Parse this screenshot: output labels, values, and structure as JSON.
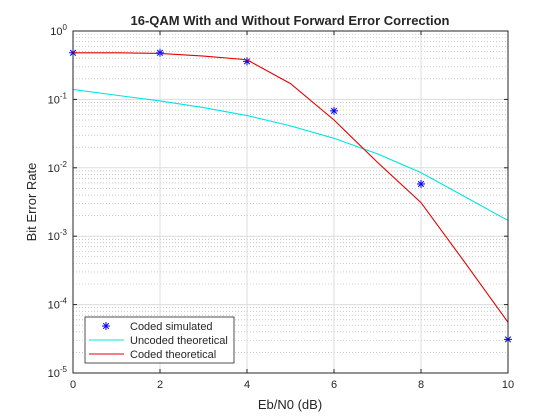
{
  "chart_data": {
    "type": "line",
    "title": "16-QAM With and Without Forward Error Correction",
    "xlabel": "Eb/N0 (dB)",
    "ylabel": "Bit Error Rate",
    "xlim": [
      0,
      10
    ],
    "ylim": [
      1e-05,
      1
    ],
    "y_scale": "log",
    "grid": true,
    "minor_grid": true,
    "legend_position": "bottom-left",
    "x_ticks": [
      0,
      2,
      4,
      6,
      8,
      10
    ],
    "x_tick_labels": [
      "0",
      "2",
      "4",
      "6",
      "8",
      "10"
    ],
    "y_tick_exponents": [
      0,
      -1,
      -2,
      -3,
      -4,
      -5
    ],
    "y_tick_base": "10",
    "series": [
      {
        "name": "Coded simulated",
        "style": "markers",
        "marker": "asterisk",
        "color": "#0000FF",
        "x": [
          0,
          2,
          4,
          6,
          8,
          10
        ],
        "y": [
          0.48,
          0.48,
          0.36,
          0.068,
          0.0058,
          3.1e-05
        ]
      },
      {
        "name": "Uncoded theoretical",
        "style": "line",
        "color": "#00E5E5",
        "x": [
          0,
          1,
          2,
          3,
          4,
          5,
          6,
          7,
          8,
          9,
          10
        ],
        "y": [
          0.14,
          0.115,
          0.095,
          0.076,
          0.058,
          0.041,
          0.027,
          0.016,
          0.0085,
          0.0038,
          0.0017
        ]
      },
      {
        "name": "Coded theoretical",
        "style": "line",
        "color": "#E50000",
        "x": [
          0,
          1,
          2,
          3,
          4,
          5,
          6,
          7,
          8,
          9,
          10
        ],
        "y": [
          0.48,
          0.48,
          0.47,
          0.43,
          0.38,
          0.17,
          0.05,
          0.012,
          0.0031,
          0.00042,
          5.5e-05
        ]
      }
    ]
  }
}
